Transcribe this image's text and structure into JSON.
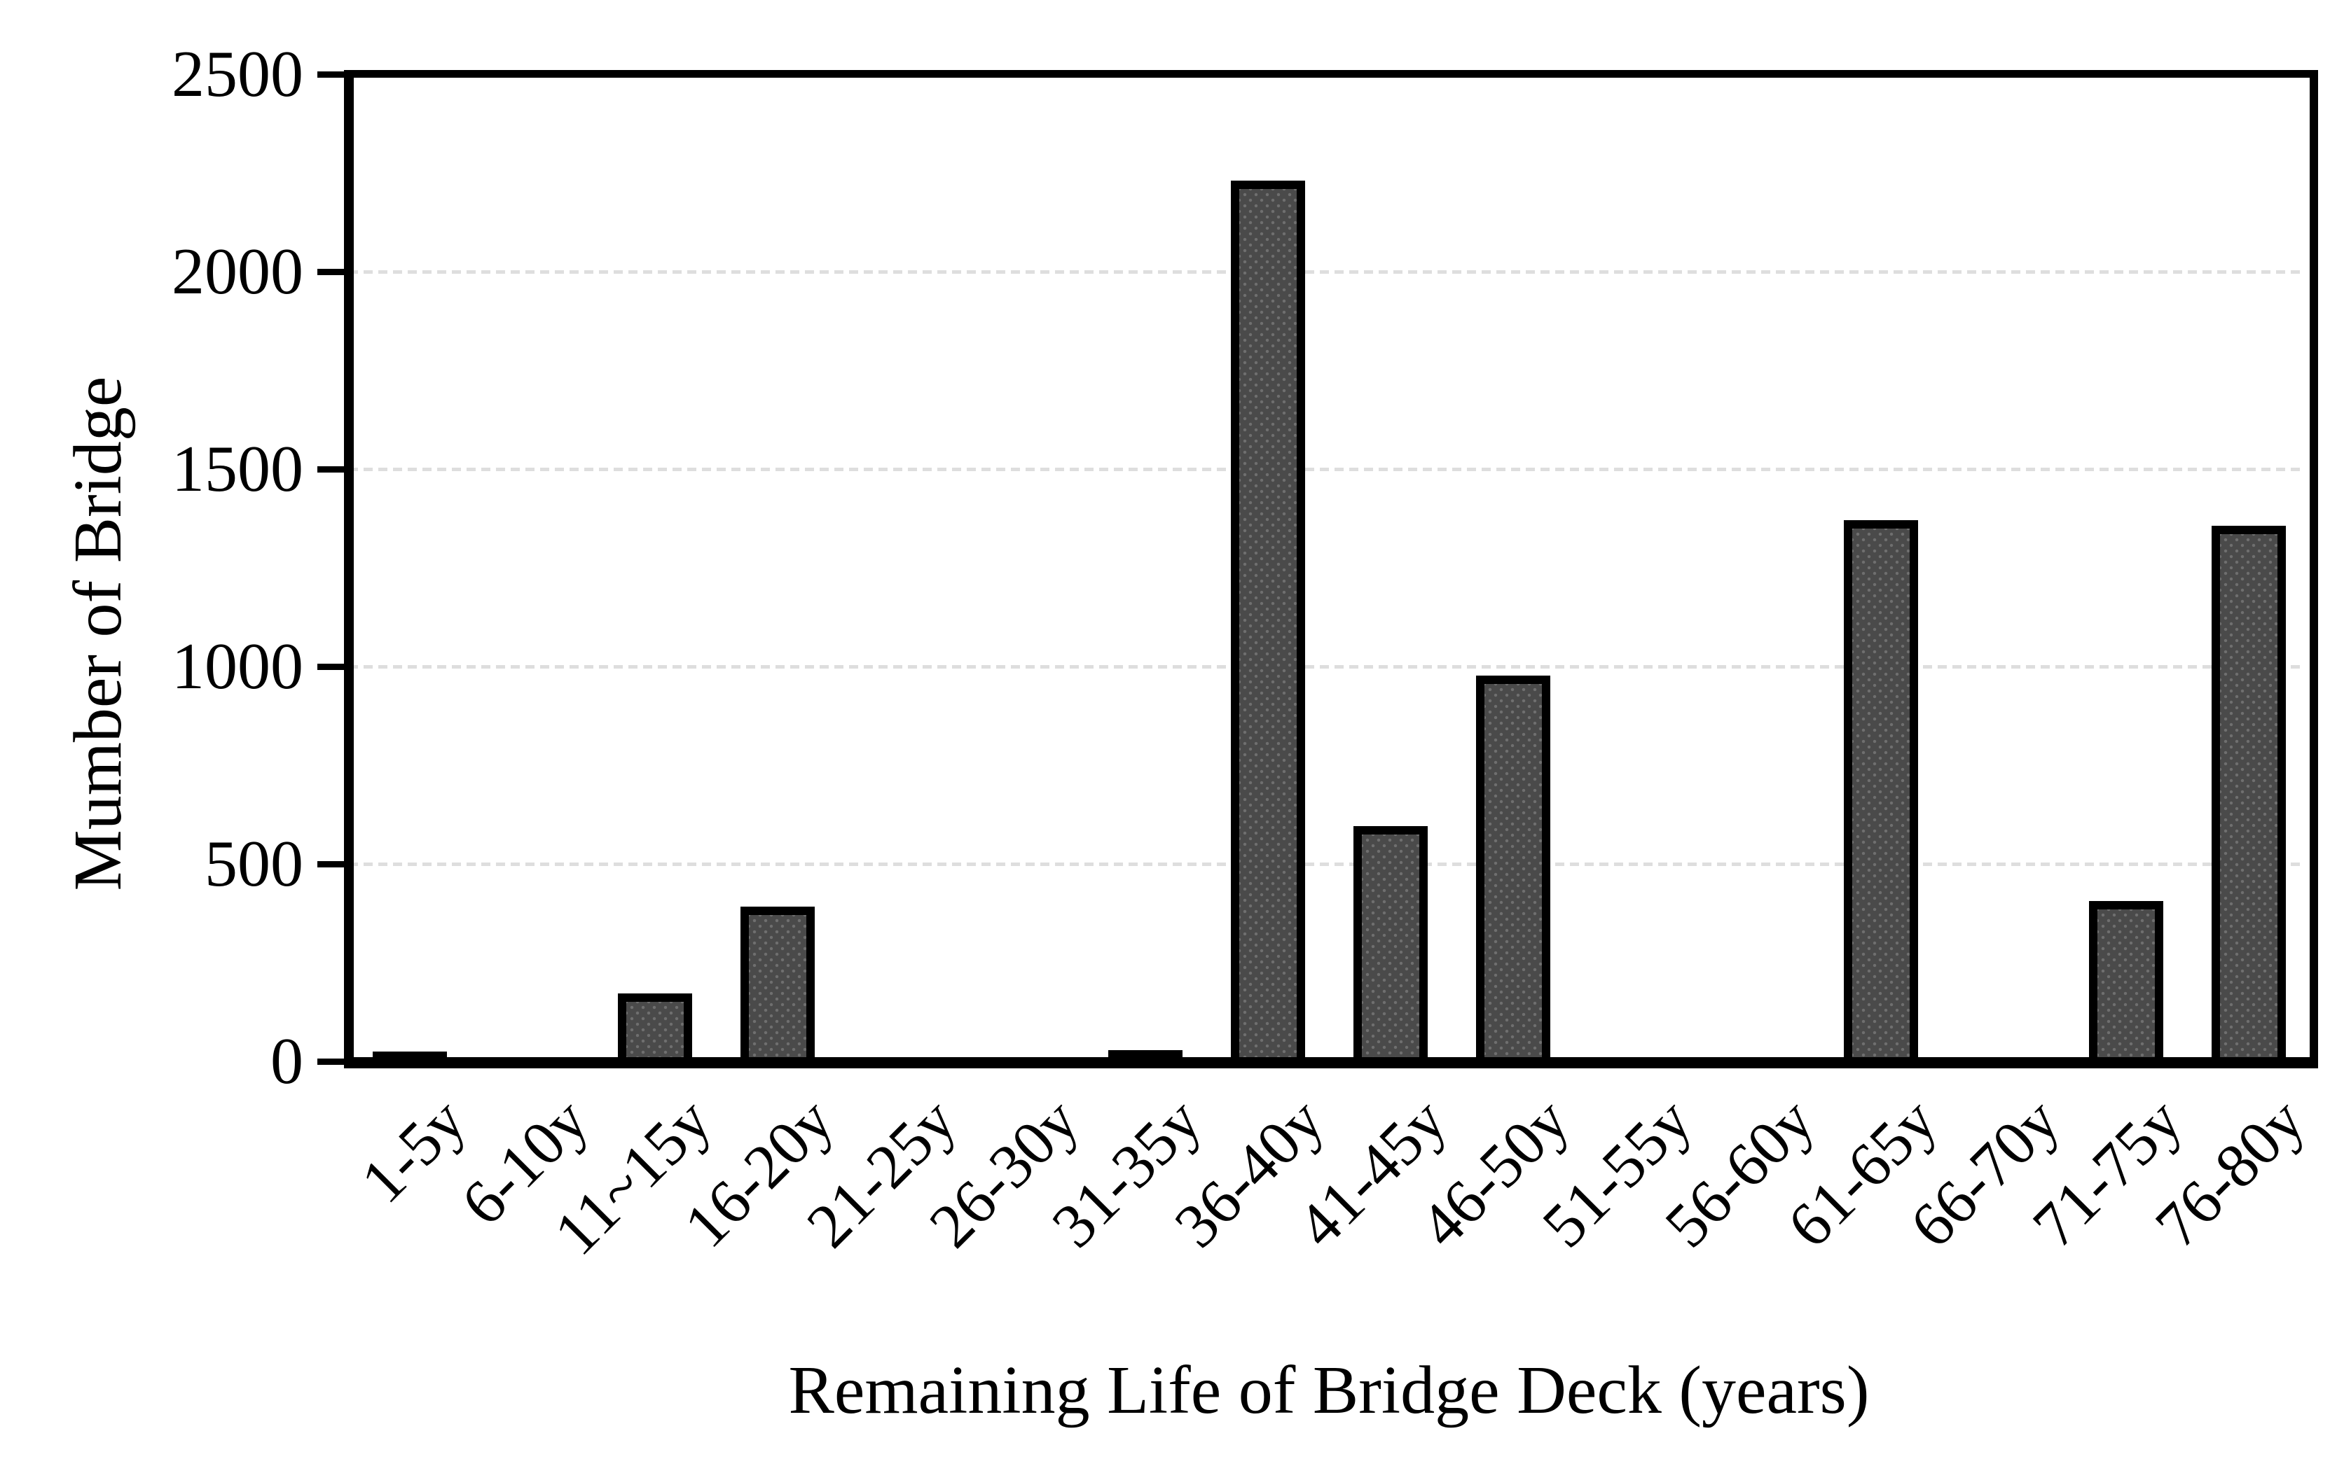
{
  "chart_data": {
    "type": "bar",
    "title": "",
    "xlabel": "Remaining Life of Bridge Deck (years)",
    "ylabel": "Mumber of Bridge",
    "categories": [
      "1-5y",
      "6-10y",
      "11~15y",
      "16-20y",
      "21-25y",
      "26-30y",
      "31-35y",
      "36-40y",
      "41-45y",
      "46-50y",
      "51-55y",
      "56-60y",
      "61-65y",
      "66-70y",
      "71-75y",
      "76-80y"
    ],
    "values": [
      10,
      0,
      150,
      370,
      0,
      0,
      15,
      2210,
      575,
      955,
      0,
      0,
      1350,
      0,
      385,
      1335
    ],
    "ylim": [
      0,
      2500
    ],
    "yticks": [
      0,
      500,
      1000,
      1500,
      2000,
      2500
    ],
    "grid": "horizontal-dashed",
    "legend": "none",
    "colors": {
      "bar_fill": "#4a4a4a",
      "bar_dot": "#6f6f6f",
      "bar_border": "#000000",
      "axis": "#000000",
      "gridline": "#dedede",
      "background": "#ffffff",
      "text": "#000000"
    }
  }
}
